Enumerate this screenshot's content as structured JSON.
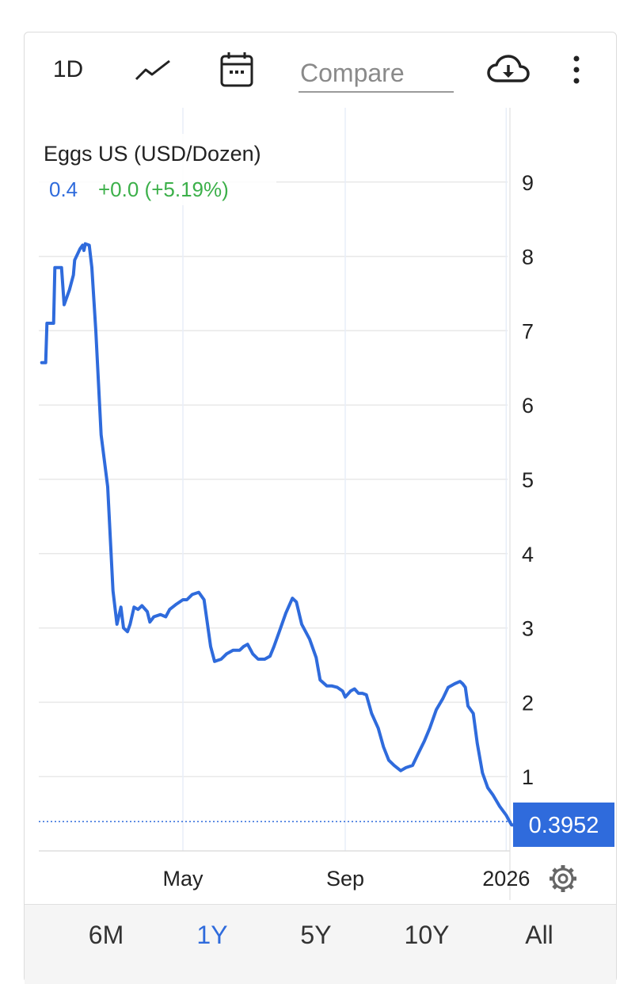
{
  "toolbar": {
    "interval_label": "1D",
    "compare_placeholder": "Compare"
  },
  "chart_data": {
    "type": "line",
    "title": "Eggs US (USD/Dozen)",
    "last_value": "0.4",
    "change": "+0.0 (+5.19%)",
    "price_tag": "0.3952",
    "ylim": [
      0,
      9.9
    ],
    "y_ticks": [
      1,
      2,
      3,
      4,
      5,
      6,
      7,
      8,
      9
    ],
    "x_range": [
      "2025-01-13",
      "2026-01-20"
    ],
    "x_ticks": [
      {
        "date": "2025-05-01",
        "label": "May"
      },
      {
        "date": "2025-09-01",
        "label": "Sep"
      },
      {
        "date": "2026-01-01",
        "label": "2026"
      }
    ],
    "grid": true,
    "series": [
      {
        "color": "#2f6bdc",
        "points": [
          [
            "2025-01-14",
            6.57
          ],
          [
            "2025-01-17",
            6.57
          ],
          [
            "2025-01-18",
            7.1
          ],
          [
            "2025-01-23",
            7.1
          ],
          [
            "2025-01-24",
            7.85
          ],
          [
            "2025-01-29",
            7.85
          ],
          [
            "2025-01-31",
            7.35
          ],
          [
            "2025-02-04",
            7.55
          ],
          [
            "2025-02-07",
            7.75
          ],
          [
            "2025-02-08",
            7.95
          ],
          [
            "2025-02-12",
            8.1
          ],
          [
            "2025-02-14",
            8.15
          ],
          [
            "2025-02-15",
            8.08
          ],
          [
            "2025-02-16",
            8.17
          ],
          [
            "2025-02-19",
            8.15
          ],
          [
            "2025-02-21",
            7.85
          ],
          [
            "2025-02-24",
            7.0
          ],
          [
            "2025-02-28",
            5.6
          ],
          [
            "2025-03-05",
            4.9
          ],
          [
            "2025-03-09",
            3.5
          ],
          [
            "2025-03-12",
            3.05
          ],
          [
            "2025-03-15",
            3.28
          ],
          [
            "2025-03-17",
            3.0
          ],
          [
            "2025-03-20",
            2.95
          ],
          [
            "2025-03-22",
            3.05
          ],
          [
            "2025-03-25",
            3.28
          ],
          [
            "2025-03-28",
            3.25
          ],
          [
            "2025-03-31",
            3.3
          ],
          [
            "2025-04-04",
            3.22
          ],
          [
            "2025-04-06",
            3.08
          ],
          [
            "2025-04-09",
            3.15
          ],
          [
            "2025-04-14",
            3.18
          ],
          [
            "2025-04-18",
            3.15
          ],
          [
            "2025-04-21",
            3.25
          ],
          [
            "2025-04-26",
            3.32
          ],
          [
            "2025-05-01",
            3.38
          ],
          [
            "2025-05-04",
            3.38
          ],
          [
            "2025-05-08",
            3.45
          ],
          [
            "2025-05-13",
            3.48
          ],
          [
            "2025-05-17",
            3.38
          ],
          [
            "2025-05-22",
            2.75
          ],
          [
            "2025-05-25",
            2.55
          ],
          [
            "2025-05-30",
            2.58
          ],
          [
            "2025-06-03",
            2.65
          ],
          [
            "2025-06-08",
            2.7
          ],
          [
            "2025-06-13",
            2.7
          ],
          [
            "2025-06-16",
            2.75
          ],
          [
            "2025-06-19",
            2.78
          ],
          [
            "2025-06-23",
            2.65
          ],
          [
            "2025-06-27",
            2.58
          ],
          [
            "2025-07-02",
            2.58
          ],
          [
            "2025-07-06",
            2.62
          ],
          [
            "2025-07-09",
            2.75
          ],
          [
            "2025-07-13",
            2.95
          ],
          [
            "2025-07-18",
            3.2
          ],
          [
            "2025-07-23",
            3.4
          ],
          [
            "2025-07-26",
            3.35
          ],
          [
            "2025-07-30",
            3.05
          ],
          [
            "2025-08-05",
            2.85
          ],
          [
            "2025-08-10",
            2.6
          ],
          [
            "2025-08-13",
            2.3
          ],
          [
            "2025-08-18",
            2.22
          ],
          [
            "2025-08-22",
            2.22
          ],
          [
            "2025-08-26",
            2.2
          ],
          [
            "2025-08-30",
            2.15
          ],
          [
            "2025-09-01",
            2.07
          ],
          [
            "2025-09-05",
            2.15
          ],
          [
            "2025-09-08",
            2.18
          ],
          [
            "2025-09-11",
            2.12
          ],
          [
            "2025-09-14",
            2.12
          ],
          [
            "2025-09-17",
            2.1
          ],
          [
            "2025-09-21",
            1.85
          ],
          [
            "2025-09-26",
            1.65
          ],
          [
            "2025-09-30",
            1.4
          ],
          [
            "2025-10-04",
            1.22
          ],
          [
            "2025-10-08",
            1.15
          ],
          [
            "2025-10-13",
            1.08
          ],
          [
            "2025-10-17",
            1.12
          ],
          [
            "2025-10-22",
            1.15
          ],
          [
            "2025-10-26",
            1.3
          ],
          [
            "2025-10-31",
            1.48
          ],
          [
            "2025-11-04",
            1.65
          ],
          [
            "2025-11-09",
            1.9
          ],
          [
            "2025-11-14",
            2.05
          ],
          [
            "2025-11-18",
            2.2
          ],
          [
            "2025-11-23",
            2.25
          ],
          [
            "2025-11-27",
            2.28
          ],
          [
            "2025-11-29",
            2.25
          ],
          [
            "2025-12-01",
            2.2
          ],
          [
            "2025-12-03",
            1.95
          ],
          [
            "2025-12-07",
            1.85
          ],
          [
            "2025-12-10",
            1.45
          ],
          [
            "2025-12-14",
            1.05
          ],
          [
            "2025-12-18",
            0.85
          ],
          [
            "2025-12-22",
            0.75
          ],
          [
            "2025-12-27",
            0.6
          ],
          [
            "2026-01-01",
            0.48
          ],
          [
            "2026-01-05",
            0.35
          ],
          [
            "2026-01-08",
            0.35
          ],
          [
            "2026-01-11",
            0.4
          ]
        ]
      }
    ]
  },
  "range_buttons": [
    {
      "label": "6M",
      "active": false
    },
    {
      "label": "1Y",
      "active": true
    },
    {
      "label": "5Y",
      "active": false
    },
    {
      "label": "10Y",
      "active": false
    },
    {
      "label": "All",
      "active": false
    }
  ]
}
